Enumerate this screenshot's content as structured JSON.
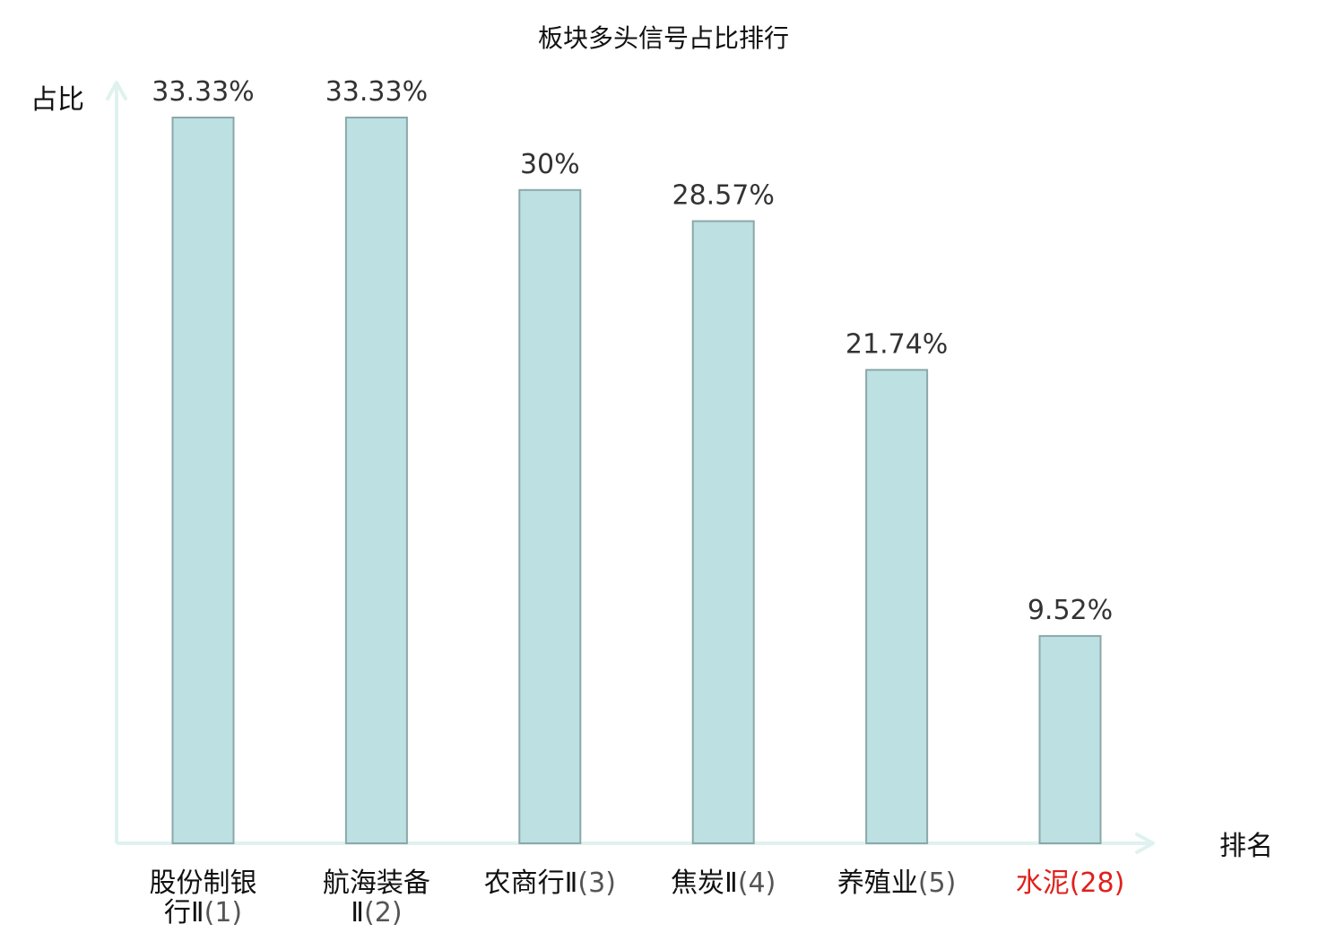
{
  "chart_data": {
    "type": "bar",
    "title": "板块多头信号占比排行",
    "xlabel": "排名",
    "ylabel": "占比",
    "ylim": [
      0,
      33.33
    ],
    "grid": false,
    "legend": "none",
    "categories": [
      {
        "name_lines": [
          "股份制银",
          "行Ⅱ"
        ],
        "rank": "(1)",
        "highlight": false
      },
      {
        "name_lines": [
          "航海装备",
          "Ⅱ"
        ],
        "rank": "(2)",
        "highlight": false
      },
      {
        "name_lines": [
          "农商行Ⅱ"
        ],
        "rank": "(3)",
        "highlight": false
      },
      {
        "name_lines": [
          "焦炭Ⅱ"
        ],
        "rank": "(4)",
        "highlight": false
      },
      {
        "name_lines": [
          "养殖业"
        ],
        "rank": "(5)",
        "highlight": false
      },
      {
        "name_lines": [
          "水泥"
        ],
        "rank": "(28)",
        "highlight": true
      }
    ],
    "values": [
      33.33,
      33.33,
      30,
      28.57,
      21.74,
      9.52
    ],
    "value_labels": [
      "33.33%",
      "33.33%",
      "30%",
      "28.57%",
      "21.74%",
      "9.52%"
    ],
    "colors": {
      "bar_fill": "#bde0e2",
      "bar_stroke": "#8aa8aa",
      "axis": "#dff2ef",
      "highlight_text": "#e0201b"
    }
  }
}
